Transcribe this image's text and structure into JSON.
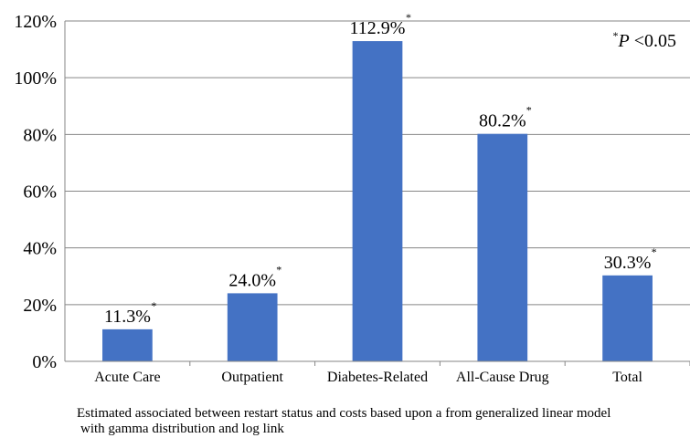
{
  "chart_data": {
    "type": "bar",
    "categories": [
      "Acute Care",
      "Outpatient",
      "Diabetes-Related",
      "All-Cause Drug",
      "Total"
    ],
    "values": [
      11.3,
      24.0,
      112.9,
      80.2,
      30.3
    ],
    "value_labels": [
      "11.3%",
      "24.0%",
      "112.9%",
      "80.2%",
      "30.3%"
    ],
    "significance_marker": "*",
    "significant": [
      true,
      true,
      true,
      true,
      true
    ],
    "yticks": [
      "0%",
      "20%",
      "40%",
      "60%",
      "80%",
      "100%",
      "120%"
    ],
    "ylim": [
      0,
      120
    ],
    "grid": true,
    "bar_color": "#4472C4",
    "grid_color": "#868686",
    "annotation": {
      "marker": "*",
      "text_p": "P",
      "text_rest": " <0.05",
      "placement": "top-right"
    }
  },
  "caption": {
    "line1": "Estimated associated between restart status and costs based upon a from generalized linear model",
    "line2": "with gamma distribution and log link"
  }
}
